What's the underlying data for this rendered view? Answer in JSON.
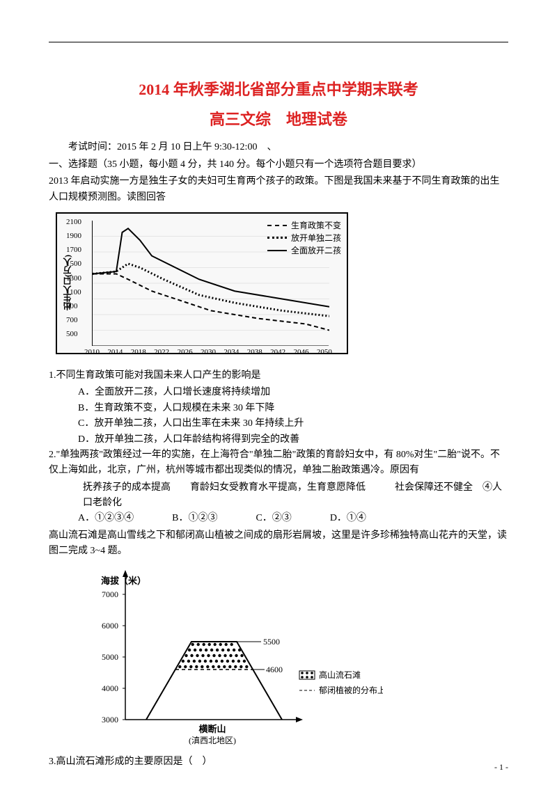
{
  "title_main": "2014 年秋季湖北省部分重点中学期末联考",
  "title_sub": "高三文综　地理试卷",
  "exam_info": "考试时间：2015 年 2 月 10 日上午 9:30-12:00　、",
  "section1": "一、选择题（35 小题，每小题 4 分，共 140 分。每个小题只有一个选项符合题目要求）",
  "intro_2013": "2013 年启动实施一方是独生子女的夫妇可生育两个孩子的政策。下图是我国未来基于不同生育政策的出生人口规模预测图。读图回答",
  "chart": {
    "y_label": "出生人口(万人)",
    "y_ticks": [
      "2100",
      "1900",
      "1700",
      "1500",
      "1300",
      "1100",
      "900",
      "700",
      "500"
    ],
    "x_ticks": [
      "2010",
      "2014",
      "2018",
      "2022",
      "2026",
      "2030",
      "2034",
      "2038",
      "2042",
      "2046",
      "2050"
    ],
    "ylim": [
      500,
      2100
    ],
    "xlim": [
      2010,
      2050
    ],
    "legend": [
      "生育政策不变",
      "放开单独二孩",
      "全面放开二孩"
    ],
    "background": "#f8f8f8",
    "grid_color": "#e5e5e5",
    "line_color": "#000000",
    "series": {
      "no_change": [
        [
          2010,
          1420
        ],
        [
          2014,
          1420
        ],
        [
          2016,
          1350
        ],
        [
          2020,
          1200
        ],
        [
          2026,
          1050
        ],
        [
          2030,
          950
        ],
        [
          2038,
          850
        ],
        [
          2046,
          780
        ],
        [
          2050,
          700
        ]
      ],
      "single_two": [
        [
          2010,
          1420
        ],
        [
          2014,
          1450
        ],
        [
          2016,
          1550
        ],
        [
          2018,
          1500
        ],
        [
          2022,
          1350
        ],
        [
          2028,
          1150
        ],
        [
          2034,
          1050
        ],
        [
          2042,
          950
        ],
        [
          2050,
          880
        ]
      ],
      "full_two": [
        [
          2010,
          1420
        ],
        [
          2014,
          1450
        ],
        [
          2015,
          1950
        ],
        [
          2016,
          2000
        ],
        [
          2018,
          1850
        ],
        [
          2020,
          1650
        ],
        [
          2024,
          1500
        ],
        [
          2028,
          1350
        ],
        [
          2034,
          1200
        ],
        [
          2042,
          1100
        ],
        [
          2050,
          1000
        ]
      ]
    },
    "styles": {
      "no_change": {
        "dash": "6,4",
        "width": 2
      },
      "single_two": {
        "dash": "2,3",
        "width": 3
      },
      "full_two": {
        "dash": "",
        "width": 2
      }
    }
  },
  "q1": {
    "stem": "1.不同生育政策可能对我国未来人口产生的影响是",
    "A": "A．全面放开二孩，人口增长速度将持续增加",
    "B": "B．生育政策不变，人口规模在未来 30 年下降",
    "C": "C．放开单独二孩，人口出生率在未来 30 年持续上升",
    "D": "D．放开单独二孩，人口年龄结构将得到完全的改善"
  },
  "q2": {
    "stem": "2.\"单独两孩\"政策经过一年的实施，在上海符合\"单独二胎\"政策的育龄妇女中，有 80%对生\"二胎\"说不。不仅上海如此，北京，广州，杭州等城市都出现类似的情况，单独二胎政策遇冷。原因有",
    "reasons": "抚养孩子的成本提高　　育龄妇女受教育水平提高，生育意愿降低　　　社会保障还不健全　④人口老龄化",
    "A": "A．①②③④",
    "B": "B．①②③",
    "C": "C．②③",
    "D": "D．①④"
  },
  "intro_mountain": "高山流石滩是高山雪线之下和郁闭高山植被之间成的扇形岩屑坡，这里是许多珍稀独特高山花卉的天堂，读图二完成 3~4 题。",
  "mountain": {
    "y_label": "海拔（米）",
    "y_ticks": [
      "7000",
      "6000",
      "5000",
      "4000",
      "3000"
    ],
    "label_upper": "5500",
    "label_lower": "4600",
    "x_label_top": "横断山",
    "x_label_sub": "(滇西北地区)",
    "legend_items": [
      "高山流石滩",
      "郁闭植被的分布上限"
    ]
  },
  "q3_stem": "3.高山流石滩形成的主要原因是（　）",
  "page_num": "- 1 -"
}
